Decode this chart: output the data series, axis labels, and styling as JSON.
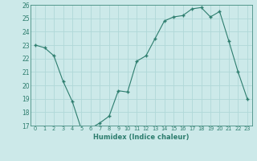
{
  "x": [
    0,
    1,
    2,
    3,
    4,
    5,
    6,
    7,
    8,
    9,
    10,
    11,
    12,
    13,
    14,
    15,
    16,
    17,
    18,
    19,
    20,
    21,
    22,
    23
  ],
  "y": [
    23,
    22.8,
    22.2,
    20.3,
    18.8,
    16.7,
    16.8,
    17.2,
    17.7,
    19.6,
    19.5,
    21.8,
    22.2,
    23.5,
    24.8,
    25.1,
    25.2,
    25.7,
    25.8,
    25.1,
    25.5,
    23.3,
    21.0,
    19.0
  ],
  "xlabel": "Humidex (Indice chaleur)",
  "ylim": [
    17,
    26
  ],
  "xlim": [
    -0.5,
    23.5
  ],
  "yticks": [
    17,
    18,
    19,
    20,
    21,
    22,
    23,
    24,
    25,
    26
  ],
  "xticks": [
    0,
    1,
    2,
    3,
    4,
    5,
    6,
    7,
    8,
    9,
    10,
    11,
    12,
    13,
    14,
    15,
    16,
    17,
    18,
    19,
    20,
    21,
    22,
    23
  ],
  "line_color": "#2d7d6e",
  "bg_color": "#cce9e9",
  "grid_color": "#b0d8d8",
  "label_color": "#2d7d6e",
  "tick_color": "#2d7d6e"
}
